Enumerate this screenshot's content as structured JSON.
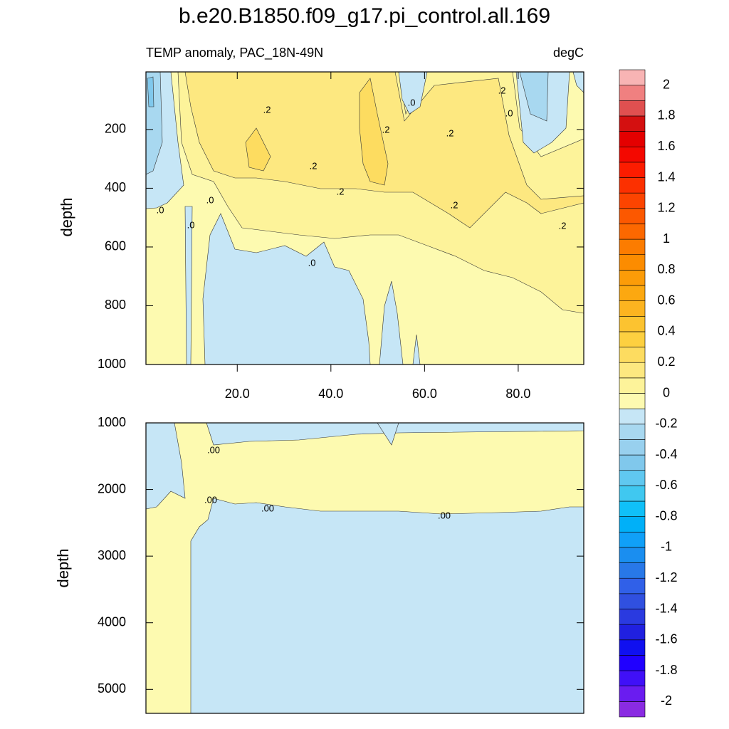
{
  "title": "b.e20.B1850.f09_g17.pi_control.all.169",
  "chart_data": [
    {
      "type": "contour",
      "subtitle_left": "TEMP anomaly, PAC_18N-49N",
      "subtitle_right": "degC",
      "ylabel": "depth",
      "xlim": [
        0.5,
        94
      ],
      "xticks": [
        {
          "value": 20,
          "label": "20.0"
        },
        {
          "value": 40,
          "label": "40.0"
        },
        {
          "value": 60,
          "label": "60.0"
        },
        {
          "value": 80,
          "label": "80.0"
        }
      ],
      "ylim": [
        4,
        1000
      ],
      "yaxis_inverted": true,
      "yticks": [
        200,
        400,
        600,
        800,
        1000
      ],
      "contour_labels": [
        ".2",
        ".0",
        ".2",
        ".0",
        ".2",
        ".2",
        ".2",
        ".2",
        ".0",
        ".0",
        ".2",
        ".0",
        ".2",
        ".0"
      ]
    },
    {
      "type": "contour",
      "ylabel": "depth",
      "xlim": [
        0.5,
        94
      ],
      "ylim": [
        1000,
        5360
      ],
      "yaxis_inverted": true,
      "yticks": [
        1000,
        2000,
        3000,
        4000,
        5000
      ],
      "contour_labels": [
        ".00",
        ".00",
        ".00",
        ".00"
      ]
    }
  ],
  "colorbar": {
    "levels": [
      -2,
      -1.9,
      -1.8,
      -1.7,
      -1.6,
      -1.5,
      -1.4,
      -1.3,
      -1.2,
      -1.1,
      -1,
      -0.9,
      -0.8,
      -0.7,
      -0.6,
      -0.5,
      -0.4,
      -0.3,
      -0.2,
      -0.1,
      0,
      0.1,
      0.2,
      0.3,
      0.4,
      0.5,
      0.6,
      0.7,
      0.8,
      0.9,
      1,
      1.1,
      1.2,
      1.3,
      1.4,
      1.5,
      1.6,
      1.7,
      1.8,
      1.9,
      2
    ],
    "colors": [
      "#8a2be2",
      "#6a1cf0",
      "#4010f8",
      "#2000ff",
      "#1010f0",
      "#2020e0",
      "#2a3ae0",
      "#3050e0",
      "#3060e8",
      "#2878e8",
      "#1a8ef0",
      "#10a0f8",
      "#00b0f8",
      "#10c0f8",
      "#40c8f0",
      "#60c8f0",
      "#80c8ec",
      "#98d0ee",
      "#a8d8f0",
      "#c6e6f6",
      "#fdfab0",
      "#fdf39a",
      "#fde880",
      "#fddc60",
      "#fdd040",
      "#fcc330",
      "#fcb420",
      "#fca810",
      "#fc9c08",
      "#fc8c00",
      "#fc7c00",
      "#fc6800",
      "#fc5800",
      "#fc4400",
      "#fc3000",
      "#fc1c00",
      "#f40800",
      "#e40000",
      "#d41010",
      "#e05050",
      "#f08080",
      "#f8b4b4"
    ]
  }
}
